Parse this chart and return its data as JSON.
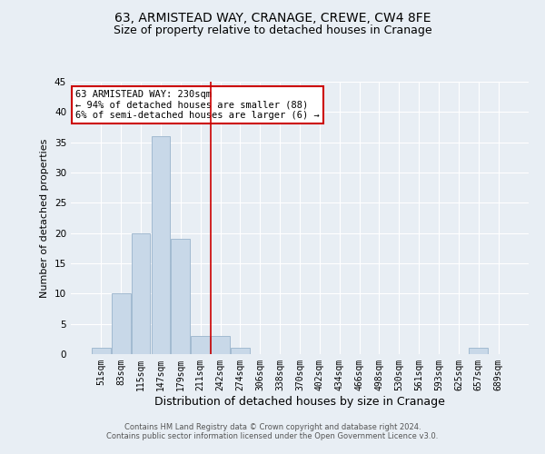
{
  "title": "63, ARMISTEAD WAY, CRANAGE, CREWE, CW4 8FE",
  "subtitle": "Size of property relative to detached houses in Cranage",
  "xlabel": "Distribution of detached houses by size in Cranage",
  "ylabel": "Number of detached properties",
  "bin_labels": [
    "51sqm",
    "83sqm",
    "115sqm",
    "147sqm",
    "179sqm",
    "211sqm",
    "242sqm",
    "274sqm",
    "306sqm",
    "338sqm",
    "370sqm",
    "402sqm",
    "434sqm",
    "466sqm",
    "498sqm",
    "530sqm",
    "561sqm",
    "593sqm",
    "625sqm",
    "657sqm",
    "689sqm"
  ],
  "bar_heights": [
    1,
    10,
    20,
    36,
    19,
    3,
    3,
    1,
    0,
    0,
    0,
    0,
    0,
    0,
    0,
    0,
    0,
    0,
    0,
    1,
    0
  ],
  "bar_color": "#c8d8e8",
  "bar_edgecolor": "#9ab4cc",
  "vline_x": 5.5,
  "vline_color": "#cc0000",
  "annotation_text": "63 ARMISTEAD WAY: 230sqm\n← 94% of detached houses are smaller (88)\n6% of semi-detached houses are larger (6) →",
  "annotation_box_color": "#cc0000",
  "ylim": [
    0,
    45
  ],
  "yticks": [
    0,
    5,
    10,
    15,
    20,
    25,
    30,
    35,
    40,
    45
  ],
  "background_color": "#e8eef4",
  "plot_bg_color": "#e8eef4",
  "footer_line1": "Contains HM Land Registry data © Crown copyright and database right 2024.",
  "footer_line2": "Contains public sector information licensed under the Open Government Licence v3.0.",
  "grid_color": "#ffffff",
  "title_fontsize": 10,
  "subtitle_fontsize": 9,
  "ylabel_fontsize": 8,
  "xlabel_fontsize": 9,
  "tick_fontsize": 7,
  "annotation_fontsize": 7.5,
  "footer_fontsize": 6
}
